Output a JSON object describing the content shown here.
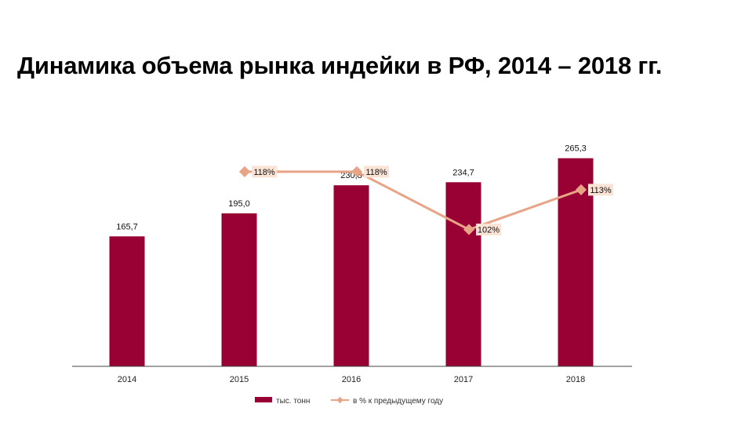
{
  "chart_data": {
    "type": "bar",
    "title": "Динамика объема рынка индейки в РФ, 2014 – 2018 гг.",
    "categories": [
      "2014",
      "2015",
      "2016",
      "2017",
      "2018"
    ],
    "series": [
      {
        "name": "тыс. тонн",
        "type": "bar",
        "values": [
          165.7,
          195.0,
          230.8,
          234.7,
          265.3
        ],
        "labels": [
          "165,7",
          "195,0",
          "230,8",
          "234,7",
          "265,3"
        ],
        "color": "#990033"
      },
      {
        "name": "в % к предыдущему году",
        "type": "line",
        "values": [
          null,
          118,
          118,
          102,
          113
        ],
        "labels": [
          null,
          "118%",
          "118%",
          "102%",
          "113%"
        ],
        "color": "#E8A487"
      }
    ],
    "ylim": [
      0,
      300
    ],
    "y2lim": [
      80,
      126
    ],
    "grid": false,
    "legend_position": "bottom",
    "label_box_color": "#FBE3D6"
  }
}
